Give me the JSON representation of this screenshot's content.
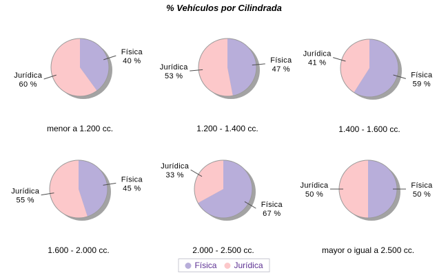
{
  "title": "% Vehículos por Cilindrada",
  "colors": {
    "fisica": "#b8aeda",
    "juridica": "#fcc8ca",
    "shadow": "#a3a3a3",
    "outline": "#999999",
    "leader_line": "#4d4d4d",
    "label_text": "#000000",
    "legend_text": "#5c2f92",
    "legend_border": "#c9c9d2"
  },
  "legend": {
    "items": [
      {
        "label": "Física",
        "color": "#b8aeda"
      },
      {
        "label": "Jurídica",
        "color": "#fcc8ca"
      }
    ]
  },
  "chart_data": {
    "type": "pie",
    "title": "% Vehículos por Cilindrada",
    "unit": "%",
    "start_angle": "top, clockwise, Física first",
    "legend_position": "bottom-center",
    "series": [
      {
        "name": "Física",
        "color": "#b8aeda"
      },
      {
        "name": "Jurídica",
        "color": "#fcc8ca"
      }
    ],
    "charts": [
      {
        "category": "menor a 1.200 cc.",
        "values": [
          40,
          60
        ]
      },
      {
        "category": "1.200 - 1.400 cc.",
        "values": [
          47,
          53
        ]
      },
      {
        "category": "1.400 - 1.600 cc.",
        "values": [
          59,
          41
        ]
      },
      {
        "category": "1.600 - 2.000 cc.",
        "values": [
          45,
          55
        ]
      },
      {
        "category": "2.000 - 2.500 cc.",
        "values": [
          67,
          33
        ]
      },
      {
        "category": "mayor o igual a 2.500 cc.",
        "values": [
          50,
          50
        ]
      }
    ]
  }
}
